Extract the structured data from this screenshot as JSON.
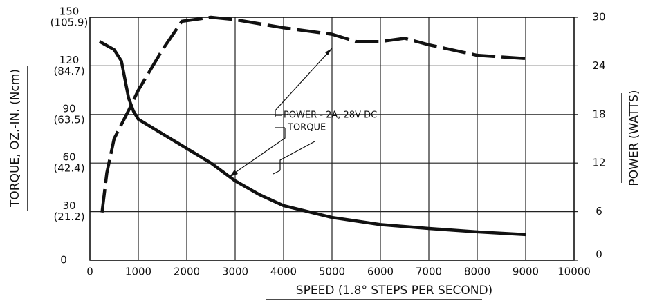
{
  "chart_data": {
    "type": "line",
    "xlabel": "SPEED (1.8° STEPS PER SECOND)",
    "ylabel": "TORQUE, OZ.-IN. (Ncm)",
    "y2label": "POWER (WATTS)",
    "xlim": [
      0,
      10000
    ],
    "xticks": [
      0,
      1000,
      2000,
      3000,
      4000,
      5000,
      6000,
      7000,
      8000,
      9000,
      10000
    ],
    "ylim": [
      0,
      150
    ],
    "yticks": [
      0,
      {
        "value": 30,
        "label": "30",
        "sublabel": "(21.2)"
      },
      {
        "value": 60,
        "label": "60",
        "sublabel": "(42.4)"
      },
      {
        "value": 90,
        "label": "90",
        "sublabel": "(63.5)"
      },
      {
        "value": 120,
        "label": "120",
        "sublabel": "(84.7)"
      },
      {
        "value": 150,
        "label": "150",
        "sublabel": "(105.9)"
      }
    ],
    "y2lim": [
      0,
      30
    ],
    "y2ticks": [
      0,
      6,
      12,
      18,
      24,
      30
    ],
    "grid": true,
    "series": [
      {
        "name": "TORQUE",
        "color": "#111111",
        "dash": "solid",
        "x": [
          200,
          500,
          650,
          800,
          900,
          1000,
          1500,
          2000,
          2500,
          3000,
          3500,
          4000,
          5000,
          6000,
          7000,
          8000,
          9000
        ],
        "values": [
          135,
          130,
          123,
          100,
          92,
          87,
          78,
          69,
          60,
          49,
          40.5,
          33.7,
          26.4,
          22,
          19.6,
          17.5,
          15.8
        ]
      },
      {
        "name": "POWER - 2A, 28V DC",
        "color": "#111111",
        "dash": "dashed",
        "axis": "y2",
        "x": [
          250,
          350,
          500,
          800,
          1000,
          1500,
          1900,
          2500,
          3000,
          4000,
          5000,
          5500,
          6000,
          6500,
          7000,
          8000,
          9000
        ],
        "values": [
          5.9,
          10.8,
          15,
          18.5,
          21,
          26,
          29.5,
          30,
          29.7,
          28.7,
          27.9,
          27,
          27,
          27.4,
          26.6,
          25.3,
          24.9
        ]
      }
    ]
  }
}
